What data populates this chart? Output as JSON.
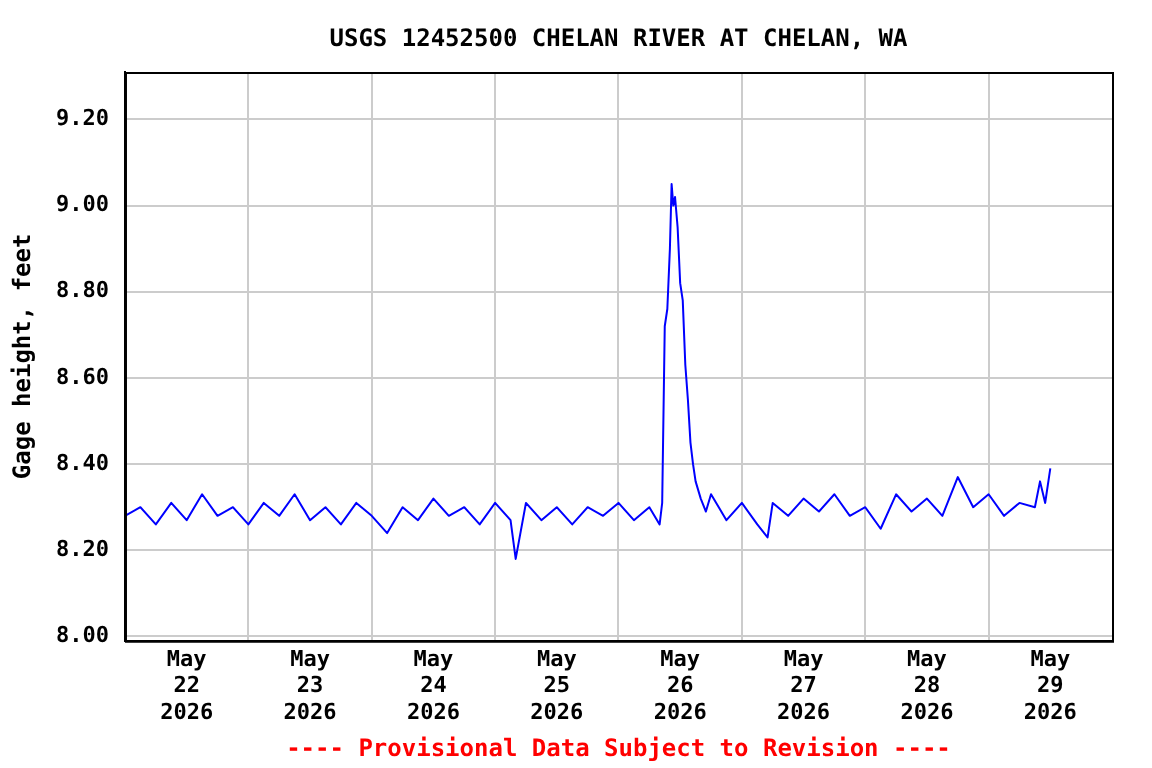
{
  "chart_data": {
    "type": "line",
    "title": "USGS 12452500 CHELAN RIVER AT CHELAN, WA",
    "ylabel": "Gage height, feet",
    "annotations": [
      "---- Provisional Data Subject to Revision ----"
    ],
    "x": [
      "2026-05-22T00:00",
      "2026-05-22T03:00",
      "2026-05-22T06:00",
      "2026-05-22T09:00",
      "2026-05-22T12:00",
      "2026-05-22T15:00",
      "2026-05-22T18:00",
      "2026-05-22T21:00",
      "2026-05-23T00:00",
      "2026-05-23T03:00",
      "2026-05-23T06:00",
      "2026-05-23T09:00",
      "2026-05-23T12:00",
      "2026-05-23T15:00",
      "2026-05-23T18:00",
      "2026-05-23T21:00",
      "2026-05-24T00:00",
      "2026-05-24T03:00",
      "2026-05-24T06:00",
      "2026-05-24T09:00",
      "2026-05-24T12:00",
      "2026-05-24T15:00",
      "2026-05-24T18:00",
      "2026-05-24T21:00",
      "2026-05-25T00:00",
      "2026-05-25T03:00",
      "2026-05-25T04:00",
      "2026-05-25T06:00",
      "2026-05-25T09:00",
      "2026-05-25T12:00",
      "2026-05-25T15:00",
      "2026-05-25T18:00",
      "2026-05-25T21:00",
      "2026-05-26T00:00",
      "2026-05-26T03:00",
      "2026-05-26T06:00",
      "2026-05-26T08:00",
      "2026-05-26T08:30",
      "2026-05-26T09:00",
      "2026-05-26T09:30",
      "2026-05-26T10:00",
      "2026-05-26T10:20",
      "2026-05-26T10:40",
      "2026-05-26T11:00",
      "2026-05-26T11:30",
      "2026-05-26T12:00",
      "2026-05-26T12:30",
      "2026-05-26T13:00",
      "2026-05-26T13:30",
      "2026-05-26T14:00",
      "2026-05-26T14:30",
      "2026-05-26T15:00",
      "2026-05-26T16:00",
      "2026-05-26T17:00",
      "2026-05-26T18:00",
      "2026-05-26T21:00",
      "2026-05-27T00:00",
      "2026-05-27T03:00",
      "2026-05-27T05:00",
      "2026-05-27T06:00",
      "2026-05-27T09:00",
      "2026-05-27T12:00",
      "2026-05-27T15:00",
      "2026-05-27T18:00",
      "2026-05-27T21:00",
      "2026-05-28T00:00",
      "2026-05-28T03:00",
      "2026-05-28T06:00",
      "2026-05-28T09:00",
      "2026-05-28T12:00",
      "2026-05-28T15:00",
      "2026-05-28T18:00",
      "2026-05-28T21:00",
      "2026-05-29T00:00",
      "2026-05-29T03:00",
      "2026-05-29T06:00",
      "2026-05-29T09:00",
      "2026-05-29T10:00",
      "2026-05-29T11:00",
      "2026-05-29T12:00"
    ],
    "series": [
      {
        "color": "#0000ff",
        "values": [
          8.28,
          8.3,
          8.26,
          8.31,
          8.27,
          8.33,
          8.28,
          8.3,
          8.26,
          8.31,
          8.28,
          8.33,
          8.27,
          8.3,
          8.26,
          8.31,
          8.28,
          8.24,
          8.3,
          8.27,
          8.32,
          8.28,
          8.3,
          8.26,
          8.31,
          8.27,
          8.18,
          8.31,
          8.27,
          8.3,
          8.26,
          8.3,
          8.28,
          8.31,
          8.27,
          8.3,
          8.26,
          8.31,
          8.72,
          8.76,
          8.9,
          9.05,
          9.0,
          9.02,
          8.95,
          8.82,
          8.78,
          8.63,
          8.55,
          8.45,
          8.4,
          8.36,
          8.32,
          8.29,
          8.33,
          8.27,
          8.31,
          8.26,
          8.23,
          8.31,
          8.28,
          8.32,
          8.29,
          8.33,
          8.28,
          8.3,
          8.25,
          8.33,
          8.29,
          8.32,
          8.28,
          8.37,
          8.3,
          8.33,
          8.28,
          8.31,
          8.3,
          8.36,
          8.31,
          8.39
        ]
      }
    ],
    "xlim": [
      "2026-05-22T00:00",
      "2026-05-30T00:00"
    ],
    "xticks": [
      {
        "value": "2026-05-22T12:00",
        "label": "May\n22\n2026"
      },
      {
        "value": "2026-05-23T00:00",
        "label": null
      },
      {
        "value": "2026-05-23T12:00",
        "label": "May\n23\n2026"
      },
      {
        "value": "2026-05-24T00:00",
        "label": null
      },
      {
        "value": "2026-05-24T12:00",
        "label": "May\n24\n2026"
      },
      {
        "value": "2026-05-25T00:00",
        "label": null
      },
      {
        "value": "2026-05-25T12:00",
        "label": "May\n25\n2026"
      },
      {
        "value": "2026-05-26T00:00",
        "label": null
      },
      {
        "value": "2026-05-26T12:00",
        "label": "May\n26\n2026"
      },
      {
        "value": "2026-05-27T00:00",
        "label": null
      },
      {
        "value": "2026-05-27T12:00",
        "label": "May\n27\n2026"
      },
      {
        "value": "2026-05-28T00:00",
        "label": null
      },
      {
        "value": "2026-05-28T12:00",
        "label": "May\n28\n2026"
      },
      {
        "value": "2026-05-29T00:00",
        "label": null
      },
      {
        "value": "2026-05-29T12:00",
        "label": "May\n29\n2026"
      }
    ],
    "ylim": [
      7.99,
      9.31
    ],
    "yticks": [
      {
        "value": 8,
        "label": "8.00"
      },
      {
        "value": 8.2,
        "label": "8.20"
      },
      {
        "value": 8.4,
        "label": "8.40"
      },
      {
        "value": 8.6,
        "label": "8.60"
      },
      {
        "value": 8.8,
        "label": "8.80"
      },
      {
        "value": 9,
        "label": "9.00"
      },
      {
        "value": 9.2,
        "label": "9.20"
      }
    ],
    "grid": true,
    "legend": false,
    "marker": "none",
    "line_style": "solid"
  }
}
